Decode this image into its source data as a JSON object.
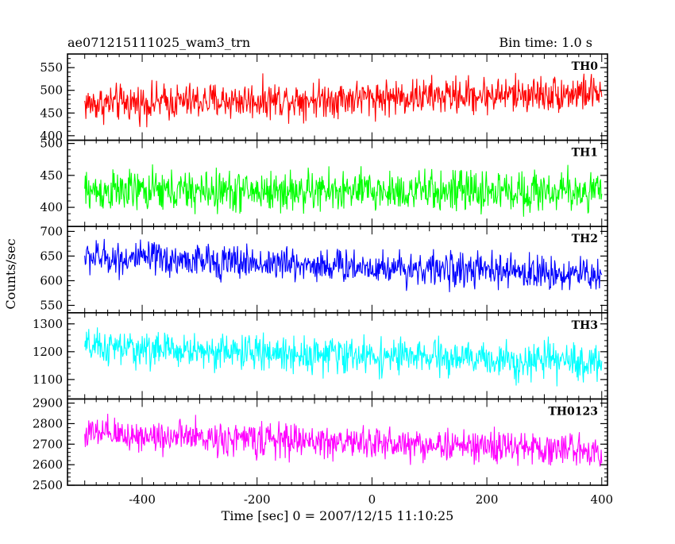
{
  "title_left": "ae071215111025_wam3_trn",
  "title_right": "Bin time: 1.0 s",
  "chart_data": {
    "type": "line",
    "xlabel": "Time [sec] 0 = 2007/12/15 11:10:25",
    "ylabel": "Counts/sec",
    "xlim": [
      -530,
      410
    ],
    "data_x_range": [
      -500,
      400
    ],
    "bin_time_s": 1.0,
    "x_ticks": [
      -400,
      -200,
      0,
      200,
      400
    ],
    "grid": false,
    "panels": [
      {
        "name": "TH0",
        "color": "#ff0000",
        "ylim": [
          390,
          580
        ],
        "y_ticks": [
          400,
          450,
          500,
          550
        ],
        "trend_start": 470,
        "trend_end": 495,
        "noise_amplitude": 35
      },
      {
        "name": "TH1",
        "color": "#00ff00",
        "ylim": [
          370,
          505
        ],
        "y_ticks": [
          400,
          450,
          500
        ],
        "trend_start": 425,
        "trend_end": 425,
        "noise_amplitude": 28
      },
      {
        "name": "TH2",
        "color": "#0000ff",
        "ylim": [
          535,
          710
        ],
        "y_ticks": [
          550,
          600,
          650,
          700
        ],
        "trend_start": 648,
        "trend_end": 612,
        "noise_amplitude": 30
      },
      {
        "name": "TH3",
        "color": "#00ffff",
        "ylim": [
          1030,
          1340
        ],
        "y_ticks": [
          1100,
          1200,
          1300
        ],
        "trend_start": 1215,
        "trend_end": 1160,
        "noise_amplitude": 55
      },
      {
        "name": "TH0123",
        "color": "#ff00ff",
        "ylim": [
          2500,
          2920
        ],
        "y_ticks": [
          2500,
          2600,
          2700,
          2800,
          2900
        ],
        "trend_start": 2750,
        "trend_end": 2670,
        "noise_amplitude": 70
      }
    ]
  }
}
